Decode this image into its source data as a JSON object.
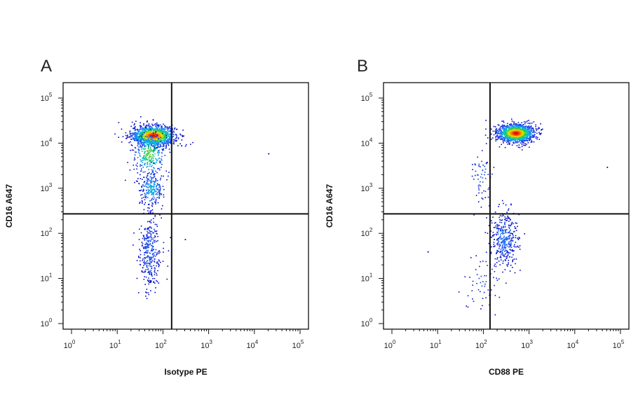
{
  "chart_data": [
    {
      "type": "scatter",
      "panel_label": "A",
      "xlabel": "Isotype PE",
      "ylabel": "CD16 A647",
      "x_scale": "log",
      "y_scale": "log",
      "xlim": [
        1,
        100000
      ],
      "ylim": [
        1,
        100000
      ],
      "x_tick_values": [
        1,
        10,
        100,
        1000,
        10000,
        100000
      ],
      "y_tick_values": [
        1,
        10,
        100,
        1000,
        10000,
        100000
      ],
      "x_tick_base": [
        "10",
        "10",
        "10",
        "10",
        "10",
        "10"
      ],
      "x_tick_exp": [
        "0",
        "1",
        "2",
        "3",
        "4",
        "5"
      ],
      "y_tick_base": [
        "10",
        "10",
        "10",
        "10",
        "10",
        "10"
      ],
      "y_tick_exp": [
        "0",
        "1",
        "2",
        "3",
        "4",
        "5"
      ],
      "quadrant_gate": {
        "x": 155,
        "y": 270
      },
      "density_coloring": [
        "#0000c8",
        "#1e78ff",
        "#00c8c8",
        "#28c83c",
        "#e6e600",
        "#ff8c00",
        "#e60000"
      ],
      "populations": [
        {
          "center": [
            60,
            15000
          ],
          "count": 1300,
          "x_log_sd": 0.24,
          "y_log_sd": 0.11,
          "peak_density": 1.0
        },
        {
          "center": [
            50,
            6000
          ],
          "count": 320,
          "x_log_sd": 0.18,
          "y_log_sd": 0.25,
          "peak_density": 0.55
        },
        {
          "center": [
            55,
            1000
          ],
          "count": 230,
          "x_log_sd": 0.13,
          "y_log_sd": 0.2,
          "peak_density": 0.3
        },
        {
          "center": [
            50,
            40
          ],
          "count": 330,
          "x_log_sd": 0.12,
          "y_log_sd": 0.45,
          "peak_density": 0.12
        }
      ],
      "outliers": [
        [
          20000,
          6000
        ],
        [
          300,
          75
        ],
        [
          150,
          12000
        ],
        [
          250,
          9000
        ]
      ]
    },
    {
      "type": "scatter",
      "panel_label": "B",
      "xlabel": "CD88 PE",
      "ylabel": "CD16 A647",
      "x_scale": "log",
      "y_scale": "log",
      "xlim": [
        1,
        100000
      ],
      "ylim": [
        1,
        100000
      ],
      "x_tick_values": [
        1,
        10,
        100,
        1000,
        10000,
        100000
      ],
      "y_tick_values": [
        1,
        10,
        100,
        1000,
        10000,
        100000
      ],
      "x_tick_base": [
        "10",
        "10",
        "10",
        "10",
        "10",
        "10"
      ],
      "x_tick_exp": [
        "0",
        "1",
        "2",
        "3",
        "4",
        "5"
      ],
      "y_tick_base": [
        "10",
        "10",
        "10",
        "10",
        "10",
        "10"
      ],
      "y_tick_exp": [
        "0",
        "1",
        "2",
        "3",
        "4",
        "5"
      ],
      "quadrant_gate": {
        "x": 140,
        "y": 270
      },
      "density_coloring": [
        "#0000c8",
        "#1e78ff",
        "#00c8c8",
        "#28c83c",
        "#e6e600",
        "#ff8c00",
        "#e60000"
      ],
      "populations": [
        {
          "center": [
            500,
            17000
          ],
          "count": 1400,
          "x_log_sd": 0.2,
          "y_log_sd": 0.1,
          "peak_density": 1.0
        },
        {
          "center": [
            280,
            80
          ],
          "count": 380,
          "x_log_sd": 0.15,
          "y_log_sd": 0.3,
          "peak_density": 0.15
        },
        {
          "center": [
            90,
            2000
          ],
          "count": 60,
          "x_log_sd": 0.12,
          "y_log_sd": 0.3,
          "peak_density": 0.12
        },
        {
          "center": [
            100,
            10
          ],
          "count": 60,
          "x_log_sd": 0.22,
          "y_log_sd": 0.3,
          "peak_density": 0.08
        }
      ],
      "outliers": [
        [
          50000,
          3000
        ],
        [
          6,
          40
        ]
      ]
    }
  ]
}
